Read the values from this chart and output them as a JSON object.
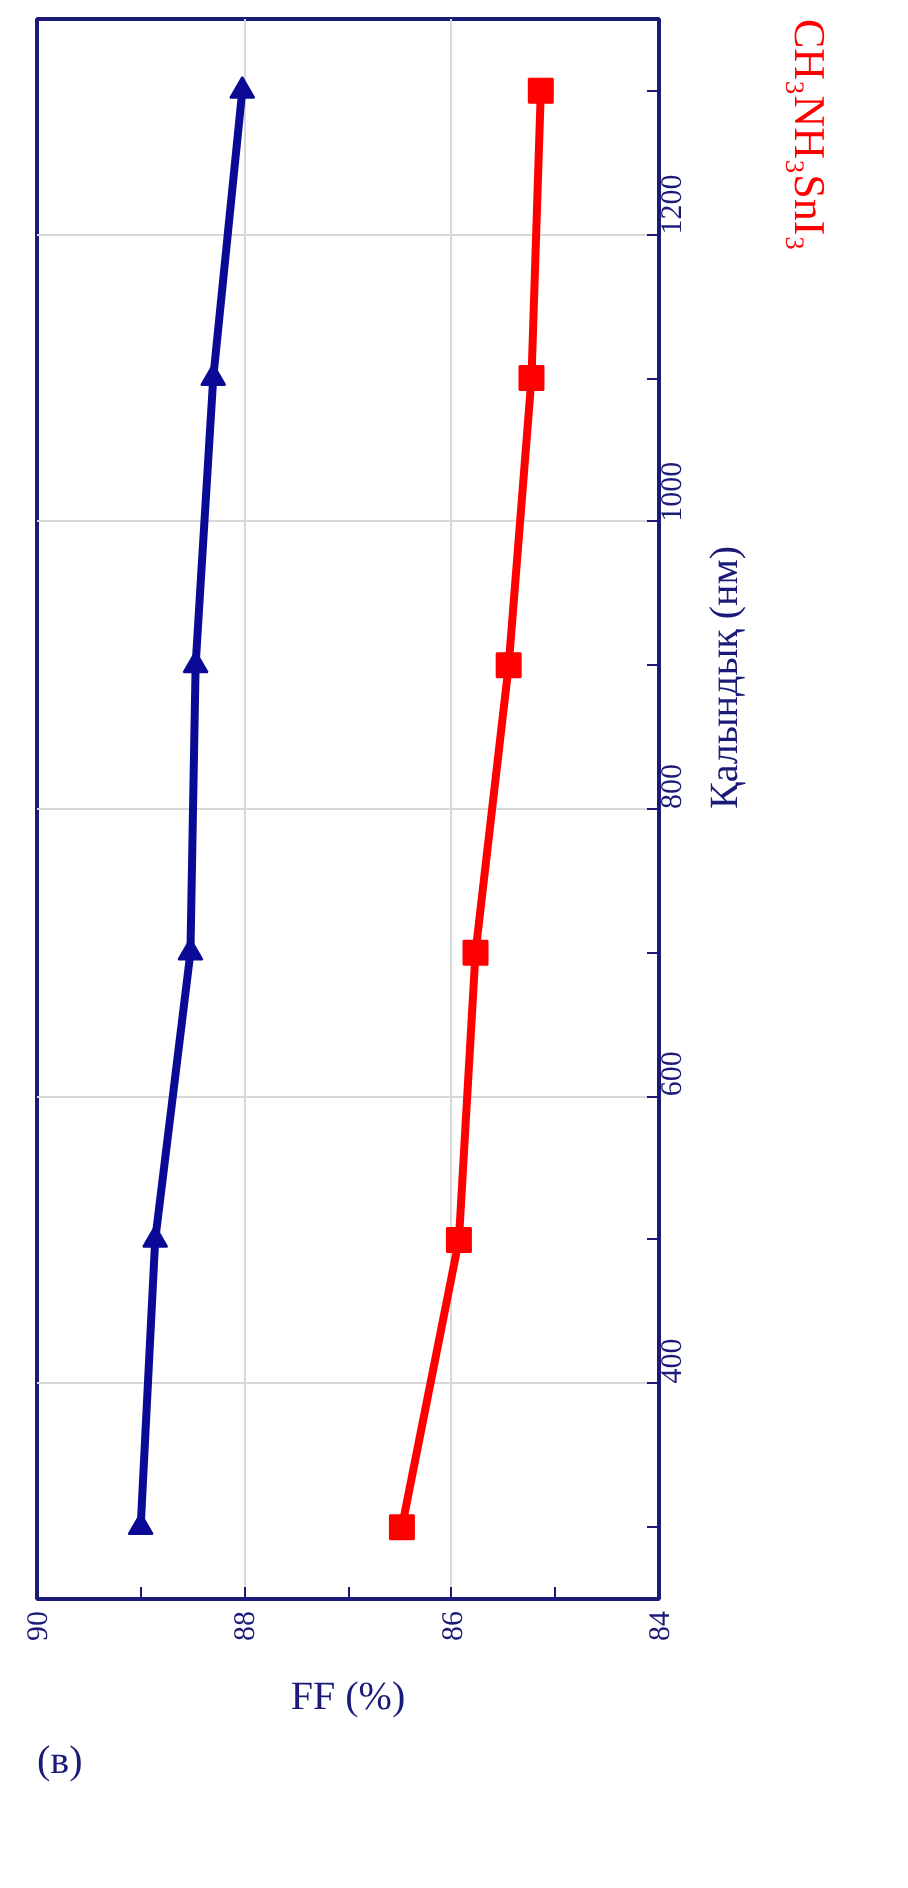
{
  "chart_data": {
    "type": "line",
    "xlabel": "FF (%)",
    "ylabel": "Қалындық (нм)",
    "series": [
      {
        "color": "#0a0a96",
        "marker": "triangle",
        "x": [
          89.0,
          88.86,
          88.52,
          88.47,
          88.3,
          88.02
        ],
        "values": [
          300,
          500,
          700,
          900,
          1100,
          1300
        ]
      },
      {
        "name": "CH₃NH₃SnI₃",
        "color": "#ff0000",
        "marker": "square",
        "x": [
          86.48,
          85.93,
          85.77,
          85.45,
          85.23,
          85.14
        ],
        "values": [
          300,
          500,
          700,
          900,
          1100,
          1300
        ]
      }
    ],
    "xlim": [
      90,
      84
    ],
    "xticks": [
      90,
      {
        "value": 89,
        "label": null
      },
      88,
      {
        "value": 87,
        "label": null
      },
      86,
      {
        "value": 85,
        "label": null
      },
      84
    ],
    "ylim": [
      250,
      1350
    ],
    "yticks": [
      {
        "value": 300,
        "label": null
      },
      400,
      {
        "value": 500,
        "label": null
      },
      600,
      {
        "value": 700,
        "label": null
      },
      800,
      {
        "value": 900,
        "label": null
      },
      1000,
      {
        "value": 1100,
        "label": null
      },
      1200,
      {
        "value": 1300,
        "label": null
      }
    ],
    "grid": true,
    "line_style": "solid",
    "annotations": [
      "(в)"
    ]
  }
}
